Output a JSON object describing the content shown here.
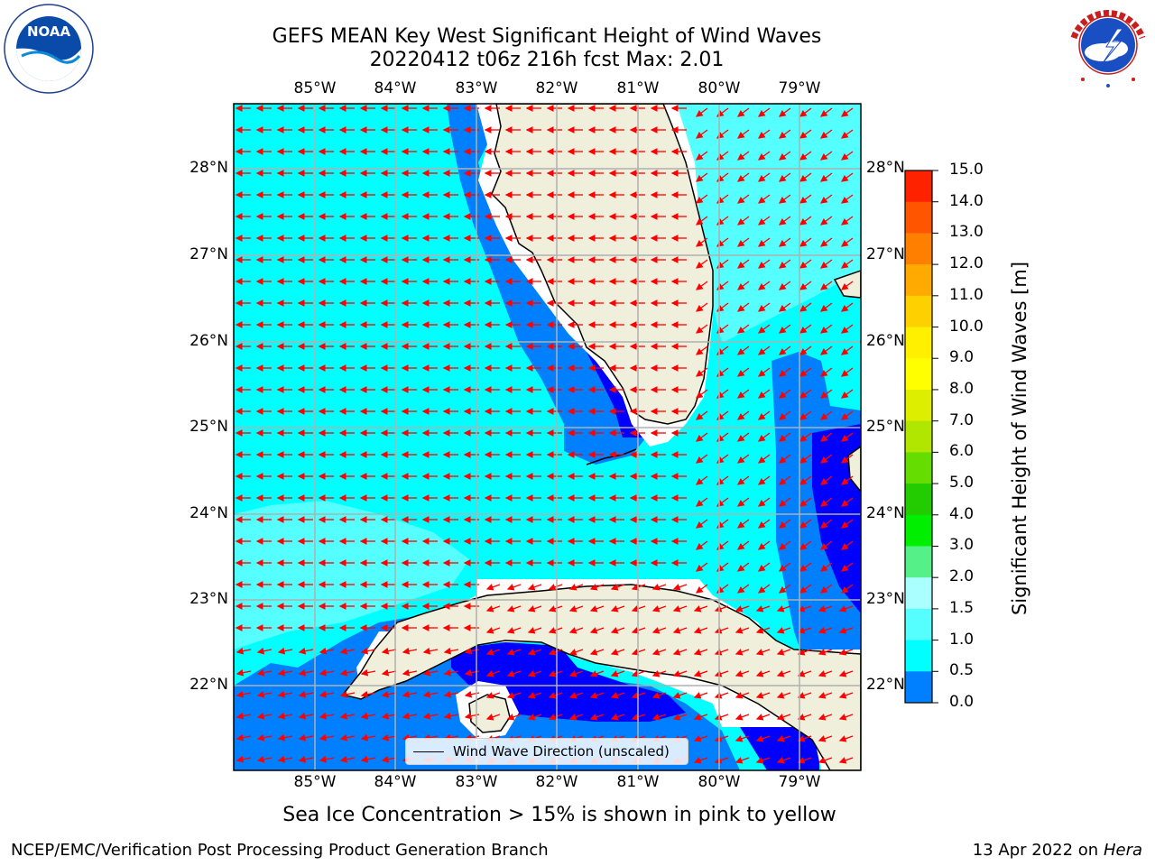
{
  "header": {
    "title_line1": "GEFS MEAN Key West Significant Height of Wind Waves",
    "title_line2": "20220412 t06z 216h fcst   Max: 2.01"
  },
  "logos": {
    "left": {
      "icon": "noaa-logo-icon",
      "text": "NOAA",
      "ring_text": "NATIONAL OCEANIC AND ATMOSPHERIC ADMINISTRATION · U.S. DEPARTMENT OF COMMERCE"
    },
    "right": {
      "icon": "nws-logo-icon",
      "ring_text": "NATIONAL WEATHER SERVICE"
    }
  },
  "map": {
    "lon_labels": [
      "85°W",
      "84°W",
      "83°W",
      "82°W",
      "81°W",
      "80°W",
      "79°W"
    ],
    "lat_labels": [
      "28°N",
      "27°N",
      "26°N",
      "25°N",
      "24°N",
      "23°N",
      "22°N"
    ],
    "legend_label": "Wind Wave Direction (unscaled)",
    "arrow_color": "#ff0000",
    "land_color": "#efefdc",
    "grid_color": "#b0b0b0"
  },
  "colorbar": {
    "label": "Significant Height of Wind Waves [m]",
    "ticks": [
      "15.0",
      "14.0",
      "13.0",
      "12.0",
      "11.0",
      "10.0",
      "9.0",
      "8.0",
      "7.0",
      "6.0",
      "5.0",
      "4.0",
      "3.0",
      "2.0",
      "1.5",
      "1.0",
      "0.5",
      "0.0"
    ],
    "colors": [
      "#ff0000",
      "#ff2200",
      "#ff5500",
      "#ff8000",
      "#ffaa00",
      "#ffd000",
      "#fff000",
      "#ffff00",
      "#ddee00",
      "#b0e600",
      "#66dd00",
      "#22cc00",
      "#00ee00",
      "#55f088",
      "#aaffff",
      "#55ffff",
      "#00ffff",
      "#0080ff",
      "#0000ff"
    ]
  },
  "caption": "Sea Ice Concentration > 15% is shown in pink to yellow",
  "footer": {
    "left": "NCEP/EMC/Verification Post Processing Product Generation Branch",
    "right_date": "13 Apr 2022 on ",
    "right_host": "Hera"
  }
}
